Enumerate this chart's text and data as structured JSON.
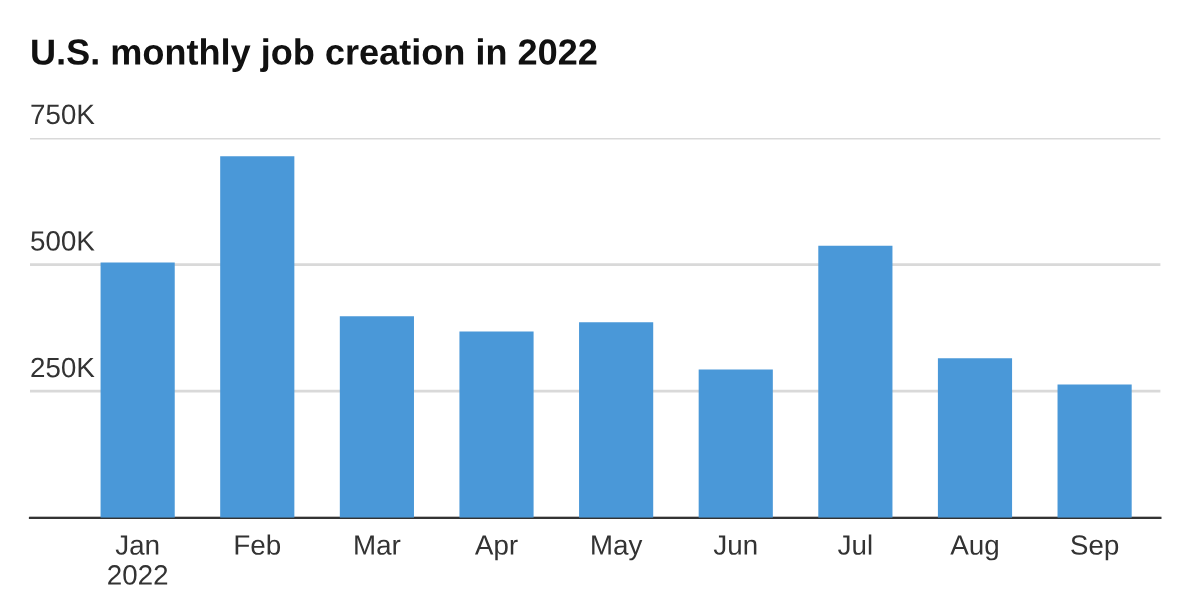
{
  "chart_data": {
    "type": "bar",
    "title": "U.S. monthly job creation in 2022",
    "categories": [
      "Jan\n2022",
      "Feb",
      "Mar",
      "Apr",
      "May",
      "Jun",
      "Jul",
      "Aug",
      "Sep"
    ],
    "values": [
      504,
      714,
      398,
      368,
      386,
      293,
      537,
      315,
      263
    ],
    "color": "#4a98d8",
    "ylim": [
      0,
      750
    ],
    "yticks": [
      {
        "value": 0,
        "label": null
      },
      {
        "value": 250,
        "label": "250K"
      },
      {
        "value": 500,
        "label": "500K"
      },
      {
        "value": 750,
        "label": "750K"
      }
    ],
    "grid": "y"
  }
}
